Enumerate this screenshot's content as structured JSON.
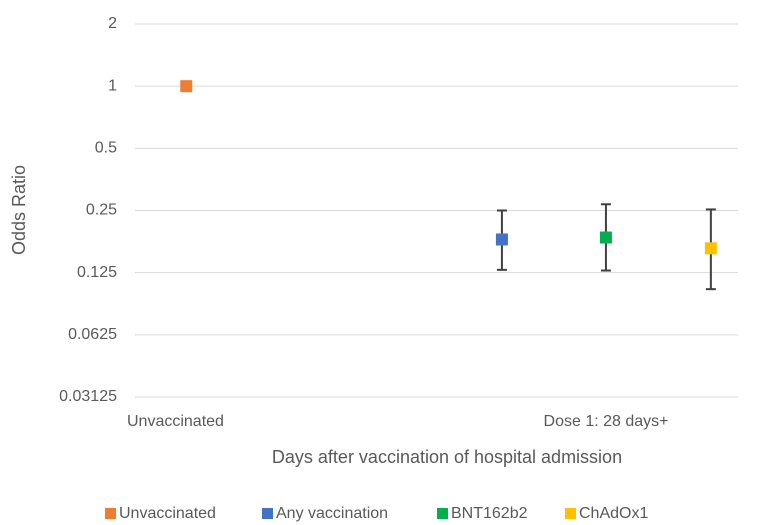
{
  "chart_data": {
    "type": "scatter",
    "y_label": "Odds Ratio",
    "x_label": "Days after vaccination of hospital admission",
    "categories": [
      "Unvaccinated",
      "Dose 1: 28 days+"
    ],
    "log_scale": true,
    "grid": true,
    "legend": "bottom",
    "ylim": [
      0.03125,
      2
    ],
    "yticks": [
      2,
      1,
      0.5,
      0.25,
      0.125,
      0.0625,
      0.03125
    ],
    "series": [
      {
        "name": "Unvaccinated",
        "color": "#ED7D31",
        "values": [
          1,
          null
        ],
        "lower": [
          null,
          null
        ],
        "upper": [
          null,
          null
        ]
      },
      {
        "name": "Any vaccination",
        "color": "#4472C4",
        "values": [
          null,
          0.181
        ],
        "lower": [
          null,
          0.129
        ],
        "upper": [
          null,
          0.25
        ]
      },
      {
        "name": "BNT162b2",
        "color": "#00B050",
        "values": [
          null,
          0.185
        ],
        "lower": [
          null,
          0.128
        ],
        "upper": [
          null,
          0.268
        ]
      },
      {
        "name": "ChAdOx1",
        "color": "#FFC000",
        "values": [
          null,
          0.164
        ],
        "lower": [
          null,
          0.104
        ],
        "upper": [
          null,
          0.253
        ]
      }
    ]
  }
}
